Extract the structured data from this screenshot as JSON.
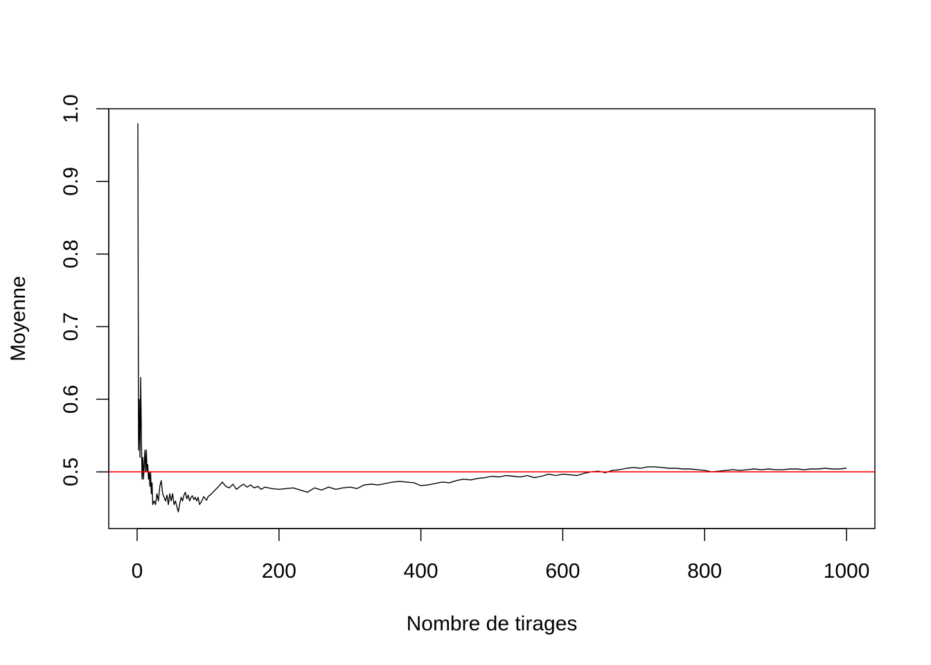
{
  "chart_data": {
    "type": "line",
    "title": "",
    "xlabel": "Nombre de tirages",
    "ylabel": "Moyenne",
    "xlim": [
      -40,
      1040
    ],
    "ylim": [
      0.422,
      1.0
    ],
    "x_ticks": [
      0,
      200,
      400,
      600,
      800,
      1000
    ],
    "x_tick_labels": [
      "0",
      "200",
      "400",
      "600",
      "800",
      "1000"
    ],
    "y_ticks": [
      0.5,
      0.6,
      0.7,
      0.8,
      0.9,
      1.0
    ],
    "y_tick_labels": [
      "0.5",
      "0.6",
      "0.7",
      "0.8",
      "0.9",
      "1.0"
    ],
    "grid": false,
    "series": [
      {
        "color": "#000000",
        "x": [
          1,
          2,
          3,
          4,
          5,
          6,
          7,
          8,
          9,
          10,
          11,
          12,
          13,
          14,
          15,
          16,
          17,
          18,
          19,
          20,
          21,
          22,
          24,
          26,
          28,
          30,
          32,
          34,
          36,
          38,
          40,
          42,
          44,
          46,
          48,
          50,
          52,
          54,
          56,
          58,
          60,
          62,
          64,
          66,
          68,
          70,
          72,
          74,
          76,
          78,
          80,
          82,
          84,
          86,
          88,
          90,
          92,
          94,
          96,
          98,
          100,
          105,
          110,
          115,
          120,
          125,
          130,
          135,
          140,
          145,
          150,
          155,
          160,
          165,
          170,
          175,
          180,
          190,
          200,
          210,
          220,
          230,
          240,
          250,
          260,
          270,
          280,
          290,
          300,
          310,
          320,
          330,
          340,
          350,
          360,
          370,
          380,
          390,
          400,
          410,
          420,
          430,
          440,
          450,
          460,
          470,
          480,
          490,
          500,
          510,
          520,
          530,
          540,
          550,
          560,
          570,
          580,
          590,
          600,
          610,
          620,
          630,
          640,
          650,
          660,
          670,
          680,
          690,
          700,
          710,
          720,
          730,
          740,
          750,
          760,
          770,
          780,
          790,
          800,
          810,
          820,
          830,
          840,
          850,
          860,
          870,
          880,
          890,
          900,
          910,
          920,
          930,
          940,
          950,
          960,
          970,
          980,
          990,
          1000
        ],
        "y": [
          0.98,
          0.53,
          0.6,
          0.52,
          0.63,
          0.55,
          0.49,
          0.52,
          0.49,
          0.51,
          0.53,
          0.5,
          0.53,
          0.5,
          0.51,
          0.49,
          0.5,
          0.48,
          0.5,
          0.47,
          0.485,
          0.455,
          0.46,
          0.455,
          0.47,
          0.46,
          0.48,
          0.488,
          0.47,
          0.465,
          0.46,
          0.468,
          0.455,
          0.47,
          0.46,
          0.47,
          0.455,
          0.46,
          0.452,
          0.445,
          0.456,
          0.465,
          0.46,
          0.468,
          0.472,
          0.463,
          0.468,
          0.46,
          0.465,
          0.467,
          0.462,
          0.465,
          0.46,
          0.465,
          0.455,
          0.458,
          0.462,
          0.466,
          0.463,
          0.461,
          0.466,
          0.47,
          0.475,
          0.48,
          0.486,
          0.48,
          0.478,
          0.483,
          0.476,
          0.48,
          0.483,
          0.479,
          0.482,
          0.478,
          0.48,
          0.476,
          0.479,
          0.477,
          0.476,
          0.477,
          0.478,
          0.475,
          0.472,
          0.478,
          0.475,
          0.479,
          0.476,
          0.478,
          0.479,
          0.477,
          0.482,
          0.483,
          0.482,
          0.484,
          0.486,
          0.487,
          0.486,
          0.485,
          0.481,
          0.482,
          0.484,
          0.486,
          0.485,
          0.488,
          0.49,
          0.489,
          0.491,
          0.492,
          0.494,
          0.493,
          0.495,
          0.494,
          0.493,
          0.495,
          0.492,
          0.494,
          0.497,
          0.495,
          0.497,
          0.496,
          0.495,
          0.498,
          0.5,
          0.501,
          0.499,
          0.502,
          0.503,
          0.505,
          0.506,
          0.505,
          0.507,
          0.507,
          0.506,
          0.505,
          0.505,
          0.504,
          0.504,
          0.503,
          0.502,
          0.5,
          0.501,
          0.502,
          0.503,
          0.502,
          0.503,
          0.504,
          0.503,
          0.504,
          0.503,
          0.503,
          0.504,
          0.504,
          0.503,
          0.504,
          0.504,
          0.505,
          0.504,
          0.504,
          0.505
        ]
      },
      {
        "color": "#ff0000",
        "type": "hline",
        "y": 0.5
      }
    ]
  }
}
